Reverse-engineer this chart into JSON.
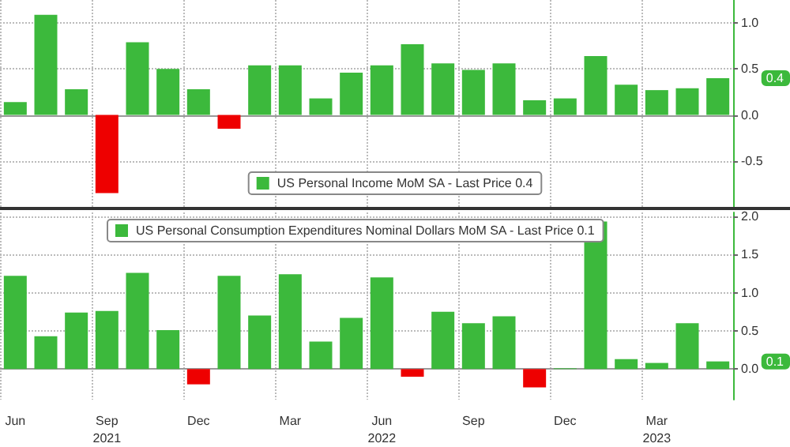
{
  "chart_data": [
    {
      "type": "bar",
      "categories": [
        null,
        null,
        null,
        null,
        null,
        null,
        null,
        null,
        null,
        null,
        null,
        null,
        null,
        null,
        null,
        null,
        null,
        null,
        null,
        null,
        null,
        null,
        null,
        null
      ],
      "series": [
        {
          "name": "US Personal Income MoM SA - Last Price 0.4",
          "color": "#3cb93c",
          "values": [
            0.14,
            1.09,
            0.28,
            -0.85,
            0.79,
            0.5,
            0.28,
            -0.15,
            0.54,
            0.54,
            0.18,
            0.46,
            0.54,
            0.77,
            0.56,
            0.49,
            0.56,
            0.16,
            0.18,
            0.64,
            0.33,
            0.27,
            0.29,
            0.4
          ],
          "colors": [
            "#3cb93c",
            "#3cb93c",
            "#3cb93c",
            "#ee0000",
            "#3cb93c",
            "#3cb93c",
            "#3cb93c",
            "#ee0000",
            "#3cb93c",
            "#3cb93c",
            "#3cb93c",
            "#3cb93c",
            "#3cb93c",
            "#3cb93c",
            "#3cb93c",
            "#3cb93c",
            "#3cb93c",
            "#3cb93c",
            "#3cb93c",
            "#3cb93c",
            "#3cb93c",
            "#3cb93c",
            "#3cb93c",
            "#3cb93c"
          ]
        }
      ],
      "ylim": [
        -1.0,
        1.25
      ],
      "yticks": [
        -0.5,
        {
          "value": 0,
          "label": "0.0"
        },
        0.5,
        {
          "value": 1,
          "label": "1.0"
        }
      ],
      "annotations": [
        "0.4"
      ],
      "grid": true,
      "legend": "bottom",
      "tick_labels": "y"
    },
    {
      "type": "bar",
      "categories": [
        "Jun",
        null,
        null,
        "Sep\n2021",
        null,
        null,
        "Dec",
        null,
        null,
        "Mar",
        null,
        null,
        "Jun\n2022",
        null,
        null,
        "Sep",
        null,
        null,
        "Dec",
        null,
        null,
        "Mar\n2023",
        null,
        null
      ],
      "series": [
        {
          "name": "US Personal Consumption Expenditures Nominal Dollars MoM SA - Last Price 0.1",
          "color": "#3cb93c",
          "values": [
            1.22,
            0.43,
            0.74,
            0.76,
            1.26,
            0.51,
            -0.2,
            1.22,
            0.7,
            1.24,
            0.36,
            0.67,
            1.2,
            -0.1,
            0.75,
            0.6,
            0.69,
            -0.24,
            0.01,
            1.93,
            0.13,
            0.08,
            0.6,
            0.1
          ],
          "colors": [
            "#3cb93c",
            "#3cb93c",
            "#3cb93c",
            "#3cb93c",
            "#3cb93c",
            "#3cb93c",
            "#ee0000",
            "#3cb93c",
            "#3cb93c",
            "#3cb93c",
            "#3cb93c",
            "#3cb93c",
            "#3cb93c",
            "#ee0000",
            "#3cb93c",
            "#3cb93c",
            "#3cb93c",
            "#ee0000",
            "#3cb93c",
            "#3cb93c",
            "#3cb93c",
            "#3cb93c",
            "#3cb93c",
            "#3cb93c"
          ]
        }
      ],
      "ylim": [
        -0.4,
        2.05
      ],
      "yticks": [
        {
          "value": 0,
          "label": "0.0"
        },
        0.5,
        {
          "value": 1,
          "label": "1.0"
        },
        1.5,
        {
          "value": 2,
          "label": "2.0"
        }
      ],
      "annotations": [
        "0.1"
      ],
      "grid": true,
      "legend": "top left"
    }
  ]
}
